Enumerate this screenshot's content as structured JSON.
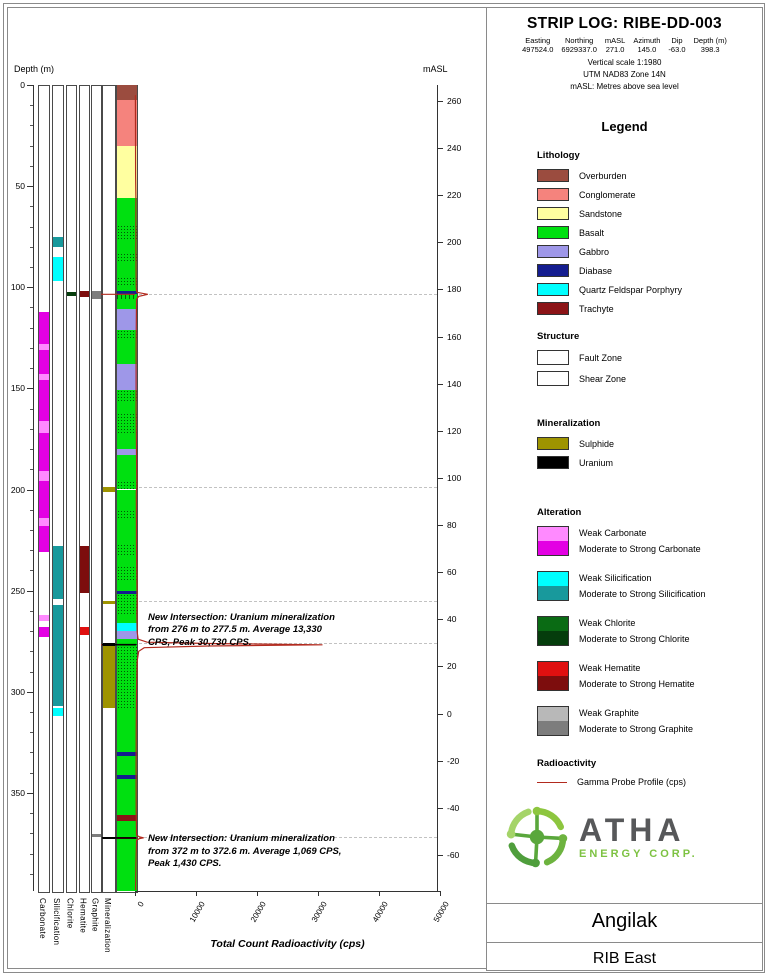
{
  "header": {
    "title": "STRIP LOG: RIBE-DD-003",
    "collar_headers": [
      "Easting",
      "Northing",
      "mASL",
      "Azimuth",
      "Dip",
      "Depth (m)"
    ],
    "collar_values": [
      "497524.0",
      "6929337.0",
      "271.0",
      "145.0",
      "-63.0",
      "398.3"
    ],
    "notes": [
      "Vertical scale 1:1980",
      "UTM NAD83 Zone 14N",
      "mASL: Metres above sea level"
    ]
  },
  "legend": {
    "title": "Legend",
    "sections": {
      "lithology": {
        "title": "Lithology",
        "items": [
          {
            "label": "Overburden",
            "color": "#9b4c3f"
          },
          {
            "label": "Conglomerate",
            "color": "#f5837d"
          },
          {
            "label": "Sandstone",
            "color": "#ffffa0"
          },
          {
            "label": "Basalt",
            "color": "#00e010"
          },
          {
            "label": "Gabbro",
            "color": "#9e97e8"
          },
          {
            "label": "Diabase",
            "color": "#141d8f"
          },
          {
            "label": "Quartz Feldspar Porphyry",
            "color": "#00ffff"
          },
          {
            "label": "Trachyte",
            "color": "#8c1417"
          }
        ]
      },
      "structure": {
        "title": "Structure",
        "items": [
          {
            "label": "Fault Zone",
            "pattern": "fault"
          },
          {
            "label": "Shear Zone",
            "pattern": "shear"
          }
        ]
      },
      "mineralization": {
        "title": "Mineralization",
        "items": [
          {
            "key": "sulphide",
            "label": "Sulphide",
            "color": "#9e9400"
          },
          {
            "key": "uranium",
            "label": "Uranium",
            "color": "#000000"
          }
        ]
      },
      "alteration": {
        "title": "Alteration",
        "items": [
          {
            "key": "carbonate",
            "weak_label": "Weak Carbonate",
            "strong_label": "Moderate to Strong Carbonate",
            "weak_color": "#ff8aff",
            "strong_color": "#e300e3"
          },
          {
            "key": "silicification",
            "weak_label": "Weak Silicification",
            "strong_label": "Moderate to Strong Silicification",
            "weak_color": "#00ffff",
            "strong_color": "#18999c"
          },
          {
            "key": "chlorite",
            "weak_label": "Weak Chlorite",
            "strong_label": "Moderate to Strong Chlorite",
            "weak_color": "#0a6b14",
            "strong_color": "#053d0c"
          },
          {
            "key": "hematite",
            "weak_label": "Weak Hematite",
            "strong_label": "Moderate to Strong Hematite",
            "weak_color": "#e01010",
            "strong_color": "#7d0d0d"
          },
          {
            "key": "graphite",
            "weak_label": "Weak Graphite",
            "strong_label": "Moderate to Strong Graphite",
            "weak_color": "#b8b8b8",
            "strong_color": "#7d7d7d"
          }
        ]
      },
      "radioactivity": {
        "title": "Radioactivity",
        "items": [
          {
            "label": "Gamma Probe Profile (cps)",
            "color": "#b22a1e"
          }
        ]
      }
    }
  },
  "logo": {
    "name": "ATHA",
    "tagline": "ENERGY CORP.",
    "accent": "#7dc242",
    "text_color": "#57585a"
  },
  "footer": {
    "project": "Angilak",
    "area": "RIB East"
  },
  "log": {
    "depth_label": "Depth (m)",
    "masl_label": "mASL",
    "x_axis_label": "Total Count Radioactivity (cps)",
    "column_labels": [
      "Carbonate",
      "Silicification",
      "Chlorite",
      "Hematite",
      "Graphite",
      "Mineralization"
    ],
    "depth_ticks": [
      0,
      50,
      100,
      150,
      200,
      250,
      300,
      350
    ],
    "masl_ticks": [
      260,
      240,
      220,
      200,
      180,
      160,
      140,
      120,
      100,
      80,
      60,
      40,
      20,
      0,
      -20,
      -40,
      -60
    ],
    "x_ticks": [
      0,
      10000,
      20000,
      30000,
      40000,
      50000
    ],
    "annotations": [
      {
        "depth": 260.5,
        "text": "New Intersection: Uranium mineralization from 276 m to 277.5 m. Average 13,330 CPS, Peak 30,730 CPS."
      },
      {
        "depth": 370,
        "text": "New Intersection: Uranium mineralization from 372 m to 372.6 m. Average 1,069 CPS, Peak 1,430 CPS."
      }
    ]
  },
  "chart_data": {
    "type": "strip-log",
    "depth_range_m": [
      0,
      398.3
    ],
    "axes": {
      "depth_m": {
        "ticks": [
          0,
          50,
          100,
          150,
          200,
          250,
          300,
          350
        ],
        "range": [
          0,
          398.3
        ]
      },
      "masl": {
        "ticks": [
          260,
          240,
          220,
          200,
          180,
          160,
          140,
          120,
          100,
          80,
          60,
          40,
          20,
          0,
          -20,
          -40,
          -60
        ]
      },
      "radioactivity_cps": {
        "ticks": [
          0,
          10000,
          20000,
          30000,
          40000,
          50000
        ],
        "range": [
          0,
          50000
        ]
      }
    },
    "lithology_intervals": [
      {
        "from": 0,
        "to": 7.5,
        "unit": "Overburden"
      },
      {
        "from": 7.5,
        "to": 30,
        "unit": "Conglomerate"
      },
      {
        "from": 30,
        "to": 56,
        "unit": "Sandstone"
      },
      {
        "from": 56,
        "to": 69,
        "unit": "Basalt"
      },
      {
        "from": 69,
        "to": 77,
        "unit": "Basalt",
        "structure": "Fault Zone"
      },
      {
        "from": 77,
        "to": 83,
        "unit": "Basalt"
      },
      {
        "from": 83,
        "to": 87,
        "unit": "Basalt",
        "structure": "Fault Zone"
      },
      {
        "from": 87,
        "to": 95,
        "unit": "Basalt"
      },
      {
        "from": 95,
        "to": 100,
        "unit": "Basalt",
        "structure": "Fault Zone"
      },
      {
        "from": 100,
        "to": 102,
        "unit": "Basalt"
      },
      {
        "from": 102,
        "to": 103.5,
        "unit": "Diabase"
      },
      {
        "from": 103.5,
        "to": 106,
        "unit": "Basalt",
        "structure": "Shear Zone"
      },
      {
        "from": 106,
        "to": 111,
        "unit": "Basalt"
      },
      {
        "from": 111,
        "to": 121,
        "unit": "Gabbro"
      },
      {
        "from": 121,
        "to": 126,
        "unit": "Basalt",
        "structure": "Fault Zone"
      },
      {
        "from": 126,
        "to": 138,
        "unit": "Basalt"
      },
      {
        "from": 138,
        "to": 151,
        "unit": "Gabbro"
      },
      {
        "from": 151,
        "to": 156,
        "unit": "Basalt",
        "structure": "Fault Zone"
      },
      {
        "from": 156,
        "to": 162,
        "unit": "Basalt"
      },
      {
        "from": 162,
        "to": 172,
        "unit": "Basalt",
        "structure": "Fault Zone"
      },
      {
        "from": 172,
        "to": 180,
        "unit": "Basalt"
      },
      {
        "from": 180,
        "to": 183,
        "unit": "Gabbro"
      },
      {
        "from": 183,
        "to": 196,
        "unit": "Basalt"
      },
      {
        "from": 196,
        "to": 200,
        "unit": "Basalt",
        "structure": "Fault Zone"
      },
      {
        "from": 200,
        "to": 210,
        "unit": "Basalt"
      },
      {
        "from": 210,
        "to": 215,
        "unit": "Basalt",
        "structure": "Fault Zone"
      },
      {
        "from": 215,
        "to": 227,
        "unit": "Basalt"
      },
      {
        "from": 227,
        "to": 233,
        "unit": "Basalt",
        "structure": "Fault Zone"
      },
      {
        "from": 233,
        "to": 238,
        "unit": "Basalt"
      },
      {
        "from": 238,
        "to": 245,
        "unit": "Basalt",
        "structure": "Fault Zone"
      },
      {
        "from": 245,
        "to": 250,
        "unit": "Basalt"
      },
      {
        "from": 250,
        "to": 251.5,
        "unit": "Diabase"
      },
      {
        "from": 251.5,
        "to": 262,
        "unit": "Basalt",
        "structure": "Fault Zone"
      },
      {
        "from": 262,
        "to": 266,
        "unit": "Basalt"
      },
      {
        "from": 266,
        "to": 270,
        "unit": "Quartz Feldspar Porphyry"
      },
      {
        "from": 270,
        "to": 274,
        "unit": "Gabbro"
      },
      {
        "from": 274,
        "to": 276,
        "unit": "Basalt"
      },
      {
        "from": 276,
        "to": 308,
        "unit": "Basalt",
        "structure": "Fault Zone"
      },
      {
        "from": 308,
        "to": 330,
        "unit": "Basalt"
      },
      {
        "from": 330,
        "to": 332,
        "unit": "Diabase"
      },
      {
        "from": 332,
        "to": 341,
        "unit": "Basalt"
      },
      {
        "from": 341,
        "to": 343,
        "unit": "Diabase"
      },
      {
        "from": 343,
        "to": 361,
        "unit": "Basalt"
      },
      {
        "from": 361,
        "to": 364,
        "unit": "Trachyte"
      },
      {
        "from": 364,
        "to": 372,
        "unit": "Basalt"
      },
      {
        "from": 372,
        "to": 372.6,
        "unit": "Trachyte"
      },
      {
        "from": 372.6,
        "to": 398.3,
        "unit": "Basalt"
      }
    ],
    "alteration_intervals": {
      "carbonate": [
        {
          "from": 112,
          "to": 128,
          "grade": "strong"
        },
        {
          "from": 128,
          "to": 131,
          "grade": "weak"
        },
        {
          "from": 131,
          "to": 143,
          "grade": "strong"
        },
        {
          "from": 143,
          "to": 146,
          "grade": "weak"
        },
        {
          "from": 146,
          "to": 166,
          "grade": "strong"
        },
        {
          "from": 166,
          "to": 172,
          "grade": "weak"
        },
        {
          "from": 172,
          "to": 191,
          "grade": "strong"
        },
        {
          "from": 191,
          "to": 196,
          "grade": "weak"
        },
        {
          "from": 196,
          "to": 214,
          "grade": "strong"
        },
        {
          "from": 214,
          "to": 218,
          "grade": "weak"
        },
        {
          "from": 218,
          "to": 231,
          "grade": "strong"
        },
        {
          "from": 262,
          "to": 265,
          "grade": "weak"
        },
        {
          "from": 268,
          "to": 273,
          "grade": "strong"
        }
      ],
      "silicification": [
        {
          "from": 75,
          "to": 80,
          "grade": "strong"
        },
        {
          "from": 85,
          "to": 97,
          "grade": "weak"
        },
        {
          "from": 228,
          "to": 254,
          "grade": "strong"
        },
        {
          "from": 257,
          "to": 307,
          "grade": "strong"
        },
        {
          "from": 308,
          "to": 312,
          "grade": "weak"
        }
      ],
      "chlorite": [
        {
          "from": 102.5,
          "to": 104.5,
          "grade": "strong"
        }
      ],
      "hematite": [
        {
          "from": 102,
          "to": 105,
          "grade": "strong"
        },
        {
          "from": 228,
          "to": 251,
          "grade": "strong"
        },
        {
          "from": 268,
          "to": 272,
          "grade": "weak"
        }
      ],
      "graphite": [
        {
          "from": 102,
          "to": 106,
          "grade": "strong"
        },
        {
          "from": 370.5,
          "to": 372,
          "grade": "strong"
        }
      ]
    },
    "mineralization_intervals": [
      {
        "from": 199,
        "to": 201,
        "mineral": "sulphide"
      },
      {
        "from": 255,
        "to": 256.5,
        "mineral": "sulphide"
      },
      {
        "from": 277.5,
        "to": 308,
        "mineral": "sulphide"
      },
      {
        "from": 276,
        "to": 277.5,
        "mineral": "uranium"
      },
      {
        "from": 372,
        "to": 372.6,
        "mineral": "uranium"
      }
    ],
    "gamma_profile_cps": [
      [
        5,
        60
      ],
      [
        20,
        80
      ],
      [
        45,
        100
      ],
      [
        56,
        150
      ],
      [
        80,
        150
      ],
      [
        100,
        200
      ],
      [
        102.5,
        300
      ],
      [
        103.5,
        2100
      ],
      [
        104.5,
        600
      ],
      [
        106,
        250
      ],
      [
        130,
        180
      ],
      [
        160,
        180
      ],
      [
        199,
        300
      ],
      [
        201,
        220
      ],
      [
        230,
        250
      ],
      [
        255,
        350
      ],
      [
        262,
        300
      ],
      [
        270,
        350
      ],
      [
        274,
        500
      ],
      [
        275.5,
        2000
      ],
      [
        276.2,
        13330
      ],
      [
        276.8,
        30730
      ],
      [
        277.4,
        12000
      ],
      [
        278.2,
        1500
      ],
      [
        280,
        600
      ],
      [
        285,
        350
      ],
      [
        300,
        250
      ],
      [
        320,
        200
      ],
      [
        340,
        180
      ],
      [
        360,
        200
      ],
      [
        371,
        250
      ],
      [
        371.8,
        800
      ],
      [
        372.2,
        1430
      ],
      [
        372.6,
        700
      ],
      [
        373.5,
        250
      ],
      [
        385,
        150
      ],
      [
        398,
        100
      ]
    ]
  }
}
